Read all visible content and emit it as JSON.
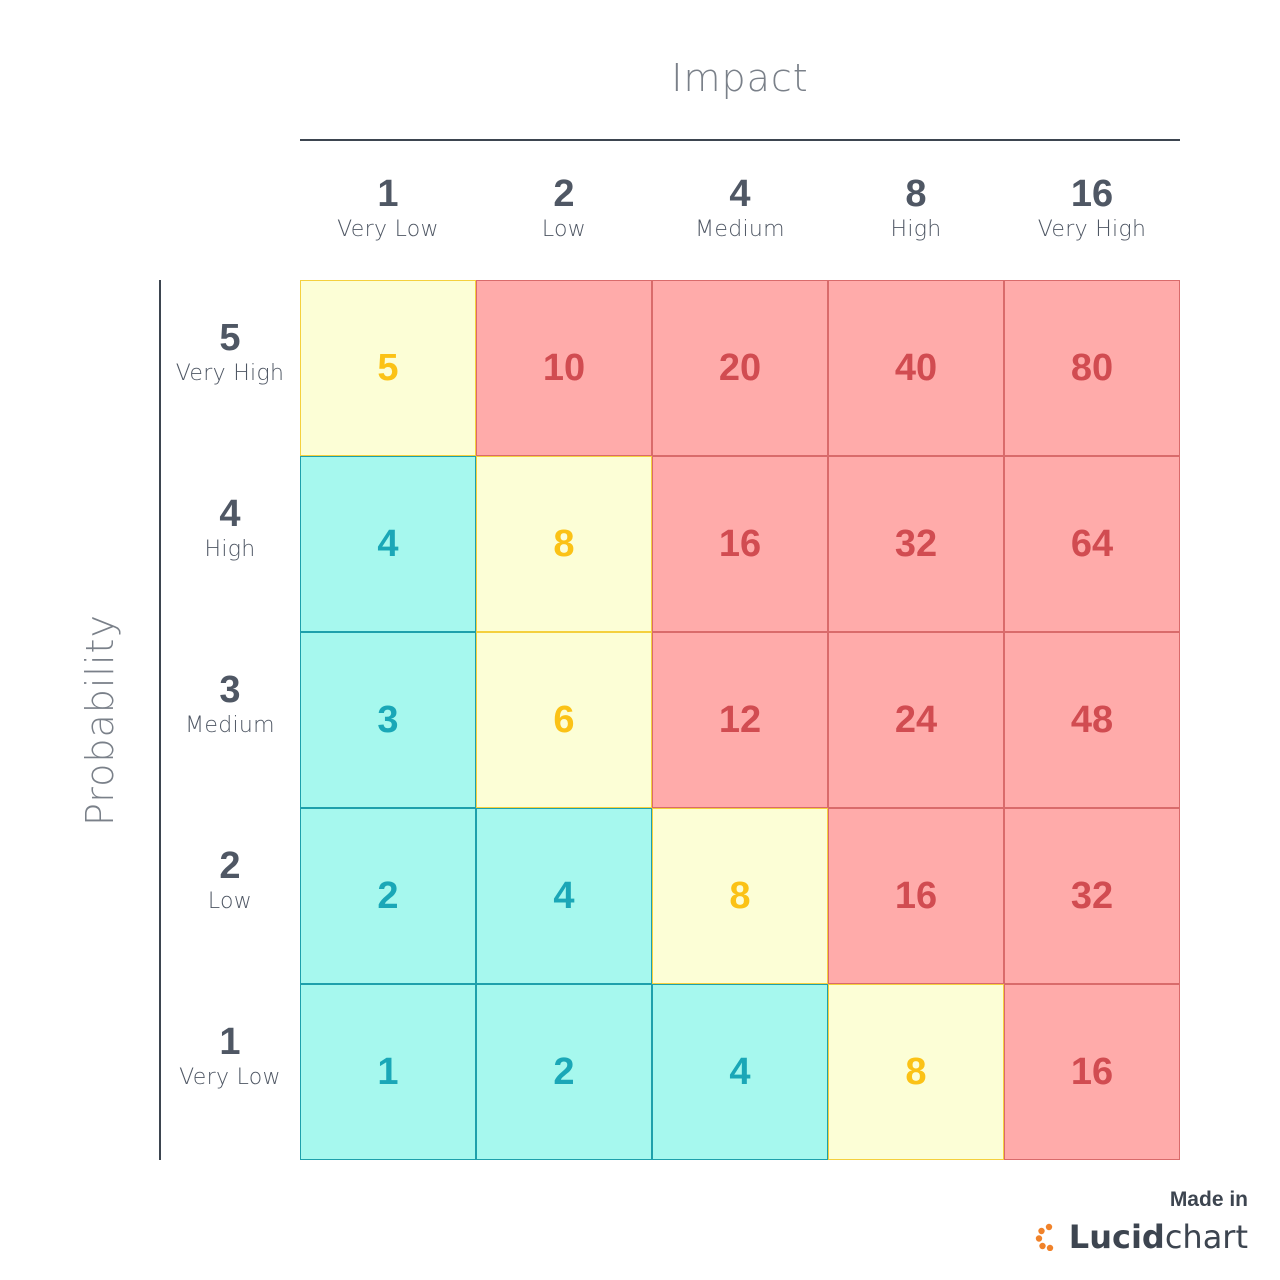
{
  "axis": {
    "impact_title": "Impact",
    "probability_title": "Probability"
  },
  "impact_levels": [
    {
      "value": "1",
      "label": "Very Low"
    },
    {
      "value": "2",
      "label": "Low"
    },
    {
      "value": "4",
      "label": "Medium"
    },
    {
      "value": "8",
      "label": "High"
    },
    {
      "value": "16",
      "label": "Very High"
    }
  ],
  "probability_levels": [
    {
      "value": "5",
      "label": "Very High"
    },
    {
      "value": "4",
      "label": "High"
    },
    {
      "value": "3",
      "label": "Medium"
    },
    {
      "value": "2",
      "label": "Low"
    },
    {
      "value": "1",
      "label": "Very Low"
    }
  ],
  "matrix": [
    [
      {
        "value": "5",
        "level": "yellow"
      },
      {
        "value": "10",
        "level": "red"
      },
      {
        "value": "20",
        "level": "red"
      },
      {
        "value": "40",
        "level": "red"
      },
      {
        "value": "80",
        "level": "red"
      }
    ],
    [
      {
        "value": "4",
        "level": "teal"
      },
      {
        "value": "8",
        "level": "yellow"
      },
      {
        "value": "16",
        "level": "red"
      },
      {
        "value": "32",
        "level": "red"
      },
      {
        "value": "64",
        "level": "red"
      }
    ],
    [
      {
        "value": "3",
        "level": "teal"
      },
      {
        "value": "6",
        "level": "yellow"
      },
      {
        "value": "12",
        "level": "red"
      },
      {
        "value": "24",
        "level": "red"
      },
      {
        "value": "48",
        "level": "red"
      }
    ],
    [
      {
        "value": "2",
        "level": "teal"
      },
      {
        "value": "4",
        "level": "teal"
      },
      {
        "value": "8",
        "level": "yellow"
      },
      {
        "value": "16",
        "level": "red"
      },
      {
        "value": "32",
        "level": "red"
      }
    ],
    [
      {
        "value": "1",
        "level": "teal"
      },
      {
        "value": "2",
        "level": "teal"
      },
      {
        "value": "4",
        "level": "teal"
      },
      {
        "value": "8",
        "level": "yellow"
      },
      {
        "value": "16",
        "level": "red"
      }
    ]
  ],
  "colors": {
    "red_fill": "#ffabaa",
    "red_text": "#d14c51",
    "yellow_fill": "#fcfed6",
    "yellow_text": "#fbc216",
    "teal_fill": "#a6f8ee",
    "teal_text": "#1aa7b7",
    "logo_accent": "#f0822a"
  },
  "badge": {
    "made_in": "Made in",
    "brand_bold": "Lucid",
    "brand_light": "chart",
    "icon": "lucidchart-logo-icon"
  }
}
